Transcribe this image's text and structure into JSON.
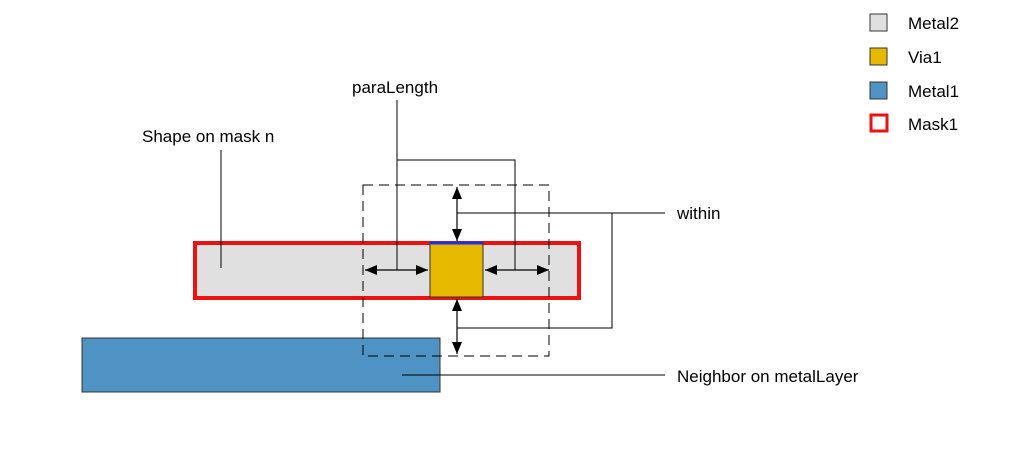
{
  "legend": {
    "items": [
      {
        "label": "Metal2",
        "color": "#e0e0e0",
        "kind": "fill"
      },
      {
        "label": "Via1",
        "color": "#e6b800",
        "kind": "fill"
      },
      {
        "label": "Metal1",
        "color": "#4f93c4",
        "kind": "fill"
      },
      {
        "label": "Mask1",
        "color": "#ee1111",
        "kind": "outline"
      }
    ]
  },
  "labels": {
    "para_length": "paraLength",
    "shape_on_mask": "Shape on mask n",
    "within": "within",
    "neighbor": "Neighbor on metalLayer"
  },
  "colors": {
    "metal2": "#e0e0e0",
    "via1": "#e6b800",
    "metal1": "#4f93c4",
    "mask1": "#ee1111",
    "via_edge": "#1a2fe0"
  }
}
